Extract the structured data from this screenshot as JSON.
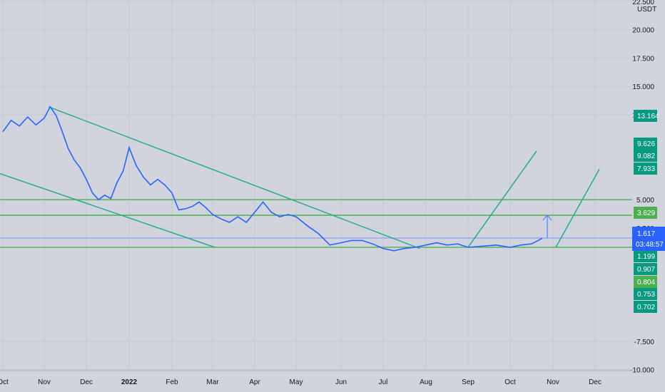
{
  "chart_data": {
    "type": "line",
    "currency_label": "USDT",
    "y_axis_ticks": [
      22.5,
      20,
      17.5,
      15,
      12.5,
      5,
      2.5,
      -7.5,
      -10
    ],
    "y_axis_tick_labels": [
      "22.500",
      "20.000",
      "17.500",
      "15.000",
      "12.500",
      "5.000",
      "2.500",
      "-7.500",
      "-10.000"
    ],
    "x_axis_labels": [
      "Oct",
      "Nov",
      "Dec",
      "2022",
      "Feb",
      "Mar",
      "Apr",
      "May",
      "Jun",
      "Jul",
      "Aug",
      "Sep",
      "Oct",
      "Nov",
      "Dec"
    ],
    "x_axis_bold": "2022",
    "current_price": "1.617",
    "countdown": "03:48:57",
    "price_badges": [
      {
        "label": "13.164",
        "value": 13.164,
        "color": "#089981"
      },
      {
        "label": "9.626",
        "value": 9.626,
        "color": "#089981"
      },
      {
        "label": "9.082",
        "value": 9.082,
        "color": "#089981"
      },
      {
        "label": "7.933",
        "value": 7.933,
        "color": "#089981"
      },
      {
        "label": "3.629",
        "value": 3.629,
        "color": "#4caf50"
      },
      {
        "label": "1.199",
        "value": 1.199,
        "color": "#089981"
      },
      {
        "label": "0.907",
        "value": 0.907,
        "color": "#089981"
      },
      {
        "label": "0.804",
        "value": 0.804,
        "color": "#4caf50"
      },
      {
        "label": "0.753",
        "value": 0.753,
        "color": "#089981"
      },
      {
        "label": "0.702",
        "value": 0.702,
        "color": "#089981"
      }
    ],
    "series": [
      {
        "values": [
          {
            "x": "Oct",
            "y": 11.0
          },
          {
            "x": "Oct",
            "y": 12.0
          },
          {
            "x": "Oct",
            "y": 11.5
          },
          {
            "x": "Oct",
            "y": 12.3
          },
          {
            "x": "Oct",
            "y": 11.6
          },
          {
            "x": "Nov",
            "y": 12.2
          },
          {
            "x": "Nov",
            "y": 13.2
          },
          {
            "x": "Nov",
            "y": 12.4
          },
          {
            "x": "Nov",
            "y": 11.0
          },
          {
            "x": "Nov",
            "y": 9.5
          },
          {
            "x": "Nov",
            "y": 8.5
          },
          {
            "x": "Nov",
            "y": 7.8
          },
          {
            "x": "Dec",
            "y": 6.8
          },
          {
            "x": "Dec",
            "y": 5.6
          },
          {
            "x": "Dec",
            "y": 5.0
          },
          {
            "x": "Dec",
            "y": 5.4
          },
          {
            "x": "Dec",
            "y": 5.1
          },
          {
            "x": "Dec",
            "y": 6.5
          },
          {
            "x": "Dec",
            "y": 7.5
          },
          {
            "x": "2022",
            "y": 9.6
          },
          {
            "x": "2022",
            "y": 8.0
          },
          {
            "x": "2022",
            "y": 7.0
          },
          {
            "x": "2022",
            "y": 6.3
          },
          {
            "x": "2022",
            "y": 6.8
          },
          {
            "x": "2022",
            "y": 6.3
          },
          {
            "x": "Feb",
            "y": 5.6
          },
          {
            "x": "Feb",
            "y": 4.1
          },
          {
            "x": "Feb",
            "y": 4.2
          },
          {
            "x": "Feb",
            "y": 4.4
          },
          {
            "x": "Feb",
            "y": 4.8
          },
          {
            "x": "Feb",
            "y": 4.3
          },
          {
            "x": "Mar",
            "y": 3.7
          },
          {
            "x": "Mar",
            "y": 3.3
          },
          {
            "x": "Mar",
            "y": 3.0
          },
          {
            "x": "Mar",
            "y": 3.5
          },
          {
            "x": "Mar",
            "y": 3.0
          },
          {
            "x": "Apr",
            "y": 3.9
          },
          {
            "x": "Apr",
            "y": 4.8
          },
          {
            "x": "Apr",
            "y": 3.9
          },
          {
            "x": "Apr",
            "y": 3.5
          },
          {
            "x": "Apr",
            "y": 3.7
          },
          {
            "x": "May",
            "y": 3.5
          },
          {
            "x": "May",
            "y": 2.7
          },
          {
            "x": "May",
            "y": 2.0
          },
          {
            "x": "May",
            "y": 1.0
          },
          {
            "x": "Jun",
            "y": 1.2
          },
          {
            "x": "Jun",
            "y": 1.4
          },
          {
            "x": "Jun",
            "y": 1.4
          },
          {
            "x": "Jun",
            "y": 1.1
          },
          {
            "x": "Jul",
            "y": 0.7
          },
          {
            "x": "Jul",
            "y": 0.5
          },
          {
            "x": "Jul",
            "y": 0.7
          },
          {
            "x": "Jul",
            "y": 0.8
          },
          {
            "x": "Aug",
            "y": 1.0
          },
          {
            "x": "Aug",
            "y": 1.2
          },
          {
            "x": "Aug",
            "y": 1.0
          },
          {
            "x": "Aug",
            "y": 1.1
          },
          {
            "x": "Sep",
            "y": 0.8
          },
          {
            "x": "Sep",
            "y": 0.9
          },
          {
            "x": "Sep",
            "y": 1.0
          },
          {
            "x": "Oct",
            "y": 0.8
          },
          {
            "x": "Oct",
            "y": 1.0
          },
          {
            "x": "Oct",
            "y": 1.1
          },
          {
            "x": "Oct",
            "y": 1.6
          }
        ],
        "color": "#2962ff"
      }
    ],
    "horizontal_lines": [
      {
        "value": 5.0,
        "color": "#4caf50"
      },
      {
        "value": 3.629,
        "color": "#4caf50"
      },
      {
        "value": 0.804,
        "color": "#4caf50"
      },
      {
        "value": 1.617,
        "color": "#9aa5f0"
      }
    ],
    "trend_lines": [
      {
        "from": {
          "x": "Nov",
          "y": 13.2
        },
        "to": {
          "x": "Aug",
          "y": 0.7
        },
        "color": "#22ab94"
      },
      {
        "from": {
          "x": "Oct",
          "y": 7.3
        },
        "to": {
          "x": "Mar",
          "y": 0.8
        },
        "color": "#22ab94"
      },
      {
        "from": {
          "x": "Sep",
          "y": 0.8
        },
        "to": {
          "x": "Oct",
          "y": 9.3
        },
        "color": "#22ab94"
      },
      {
        "from": {
          "x": "Nov",
          "y": 0.8
        },
        "to": {
          "x": "Dec",
          "y": 7.7
        },
        "color": "#22ab94"
      }
    ],
    "projection_arrow": {
      "from": 1.6,
      "to": 3.629,
      "color": "#5b8cff"
    },
    "grid": true,
    "legend": "none"
  }
}
